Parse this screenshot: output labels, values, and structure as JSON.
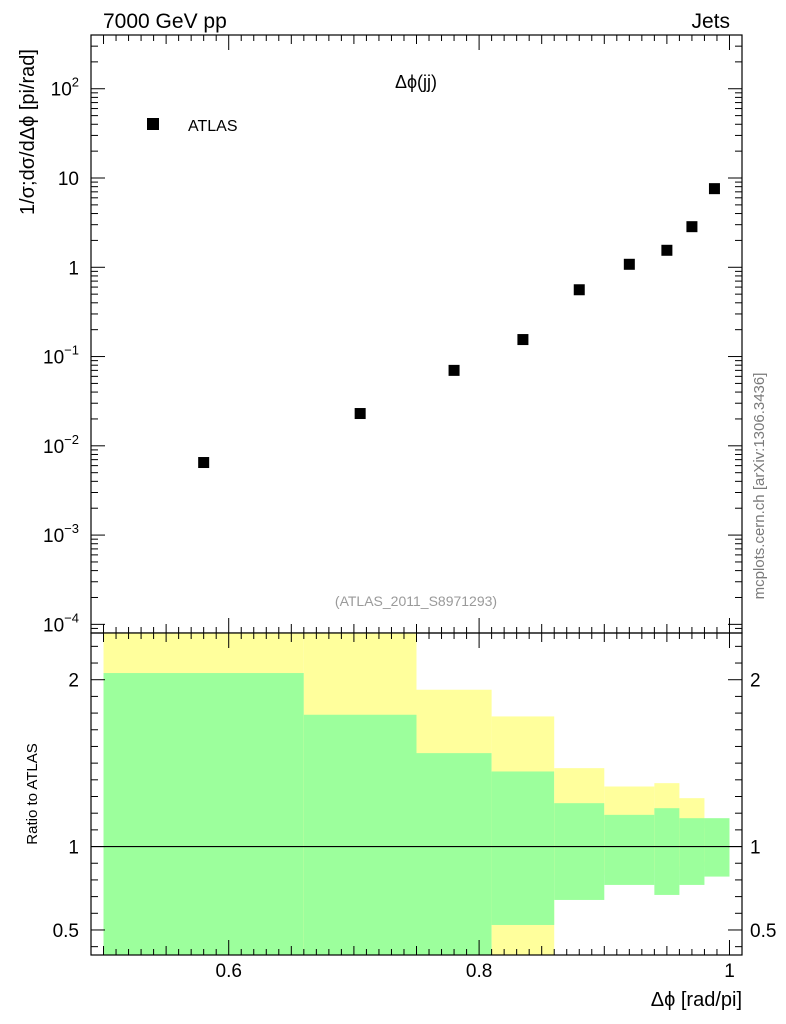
{
  "header": {
    "left": "7000 GeV pp",
    "right": "Jets"
  },
  "side_label": "mcplots.cern.ch [arXiv:1306.3436]",
  "chart_data": [
    {
      "type": "scatter",
      "title": "Δϕ(jj)",
      "analysis": "(ATLAS_2011_S8971293)",
      "ylabel": "1/σ;dσ/dΔϕ [pi/rad]",
      "yscale": "log",
      "xlim": [
        0.49,
        1.01
      ],
      "ylim": [
        8e-05,
        400
      ],
      "legend": {
        "position": "top-left",
        "entries": [
          "ATLAS"
        ]
      },
      "y_ticks": [
        {
          "value": 0.0001,
          "base": "10",
          "exp": "−4"
        },
        {
          "value": 0.001,
          "base": "10",
          "exp": "−3"
        },
        {
          "value": 0.01,
          "base": "10",
          "exp": "−2"
        },
        {
          "value": 0.1,
          "base": "10",
          "exp": "−1"
        },
        {
          "value": 1,
          "base": "1",
          "exp": ""
        },
        {
          "value": 10,
          "base": "10",
          "exp": ""
        },
        {
          "value": 100,
          "base": "10",
          "exp": "2"
        }
      ],
      "series": [
        {
          "name": "ATLAS",
          "x": [
            0.58,
            0.705,
            0.78,
            0.835,
            0.88,
            0.92,
            0.95,
            0.97,
            0.988
          ],
          "y": [
            0.0065,
            0.023,
            0.07,
            0.155,
            0.56,
            1.08,
            1.55,
            2.85,
            7.6
          ]
        }
      ]
    },
    {
      "type": "area",
      "ylabel": "Ratio to ATLAS",
      "xlabel": "Δϕ [rad/pi]",
      "xlim": [
        0.49,
        1.01
      ],
      "ylim": [
        0.35,
        2.28
      ],
      "reference_line": 1,
      "x_ticks": [
        "0.6",
        "0.8",
        "1"
      ],
      "x_tick_values": [
        0.6,
        0.8,
        1.0
      ],
      "y_ticks": [
        "0.5",
        "1",
        "2"
      ],
      "y_tick_values": [
        0.5,
        1,
        2
      ],
      "colors": {
        "inner": "#9cff9c",
        "outer": "#ffff9c"
      },
      "bins": [
        {
          "x0": 0.5,
          "x1": 0.66,
          "inner": [
            0.35,
            2.04
          ],
          "outer": [
            0.35,
            2.3
          ]
        },
        {
          "x0": 0.66,
          "x1": 0.75,
          "inner": [
            0.35,
            1.79
          ],
          "outer": [
            0.35,
            2.3
          ]
        },
        {
          "x0": 0.75,
          "x1": 0.81,
          "inner": [
            0.35,
            1.56
          ],
          "outer": [
            0.53,
            1.94
          ]
        },
        {
          "x0": 0.81,
          "x1": 0.86,
          "inner": [
            0.53,
            1.45
          ],
          "outer": [
            0.35,
            1.78
          ]
        },
        {
          "x0": 0.86,
          "x1": 0.9,
          "inner": [
            0.68,
            1.26
          ],
          "outer": [
            0.83,
            1.47
          ]
        },
        {
          "x0": 0.9,
          "x1": 0.94,
          "inner": [
            0.77,
            1.19
          ],
          "outer": [
            0.86,
            1.36
          ]
        },
        {
          "x0": 0.94,
          "x1": 0.96,
          "inner": [
            0.71,
            1.23
          ],
          "outer": [
            0.86,
            1.38
          ]
        },
        {
          "x0": 0.96,
          "x1": 0.98,
          "inner": [
            0.77,
            1.17
          ],
          "outer": [
            0.88,
            1.29
          ]
        },
        {
          "x0": 0.98,
          "x1": 1.0,
          "inner": [
            0.82,
            1.17
          ],
          "outer": [
            0.91,
            1.11
          ]
        }
      ]
    }
  ]
}
